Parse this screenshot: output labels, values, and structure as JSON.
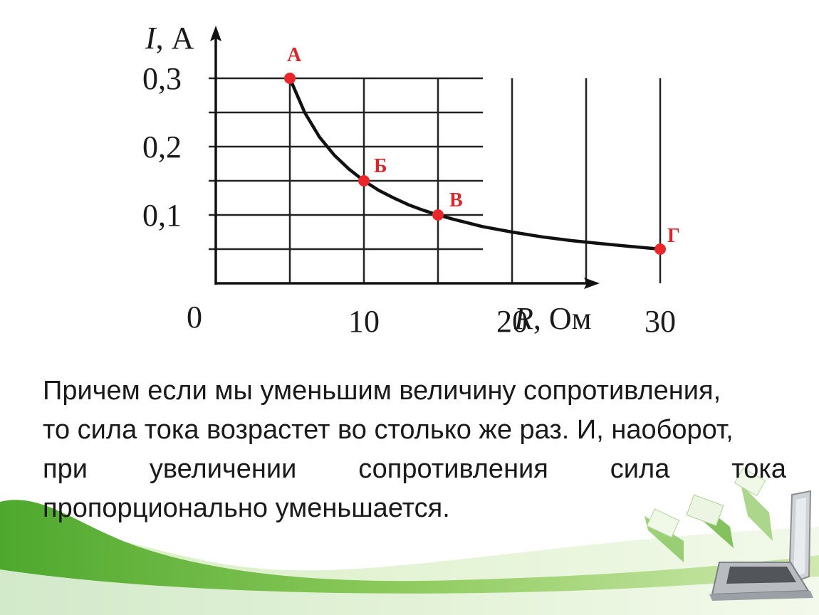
{
  "chart_data": {
    "type": "line",
    "xlabel_symbol": "R",
    "xlabel_unit": ", Ом",
    "ylabel_symbol": "I",
    "ylabel_unit": ", А",
    "x_ticks": [
      "10",
      "20",
      "30"
    ],
    "x_tick_values": [
      10,
      20,
      30
    ],
    "y_ticks": [
      "0,1",
      "0,2",
      "0,3"
    ],
    "y_tick_values": [
      0.1,
      0.2,
      0.3
    ],
    "origin_label": "0",
    "xlim": [
      0,
      30
    ],
    "ylim": [
      0,
      0.3
    ],
    "grid": true,
    "curve_color": "#111111",
    "point_color": "#e8262b",
    "series": [
      {
        "x": [
          5,
          6,
          7,
          8,
          9,
          10,
          11,
          12,
          13,
          14,
          15,
          16,
          18,
          20,
          22,
          24,
          26,
          28,
          30
        ],
        "y": [
          0.3,
          0.25,
          0.214,
          0.1875,
          0.167,
          0.15,
          0.136,
          0.125,
          0.115,
          0.107,
          0.1,
          0.094,
          0.083,
          0.075,
          0.068,
          0.0625,
          0.058,
          0.054,
          0.05
        ]
      }
    ],
    "points": [
      {
        "label": "А",
        "x": 5,
        "y": 0.3
      },
      {
        "label": "Б",
        "x": 10,
        "y": 0.15
      },
      {
        "label": "В",
        "x": 15,
        "y": 0.1
      },
      {
        "label": "Г",
        "x": 30,
        "y": 0.05
      }
    ]
  },
  "text": {
    "line1": "Причем если мы уменьшим величину сопротивления,",
    "line2": "то сила тока возрастет во столько же раз. И, наоборот,",
    "line3": "при увеличении сопротивления сила тока",
    "line4": "пропорционально уменьшается."
  },
  "theme": {
    "wave_dark": "#5cb23a",
    "wave_light": "#b9df8f",
    "laptop": "#c8ccd0"
  }
}
